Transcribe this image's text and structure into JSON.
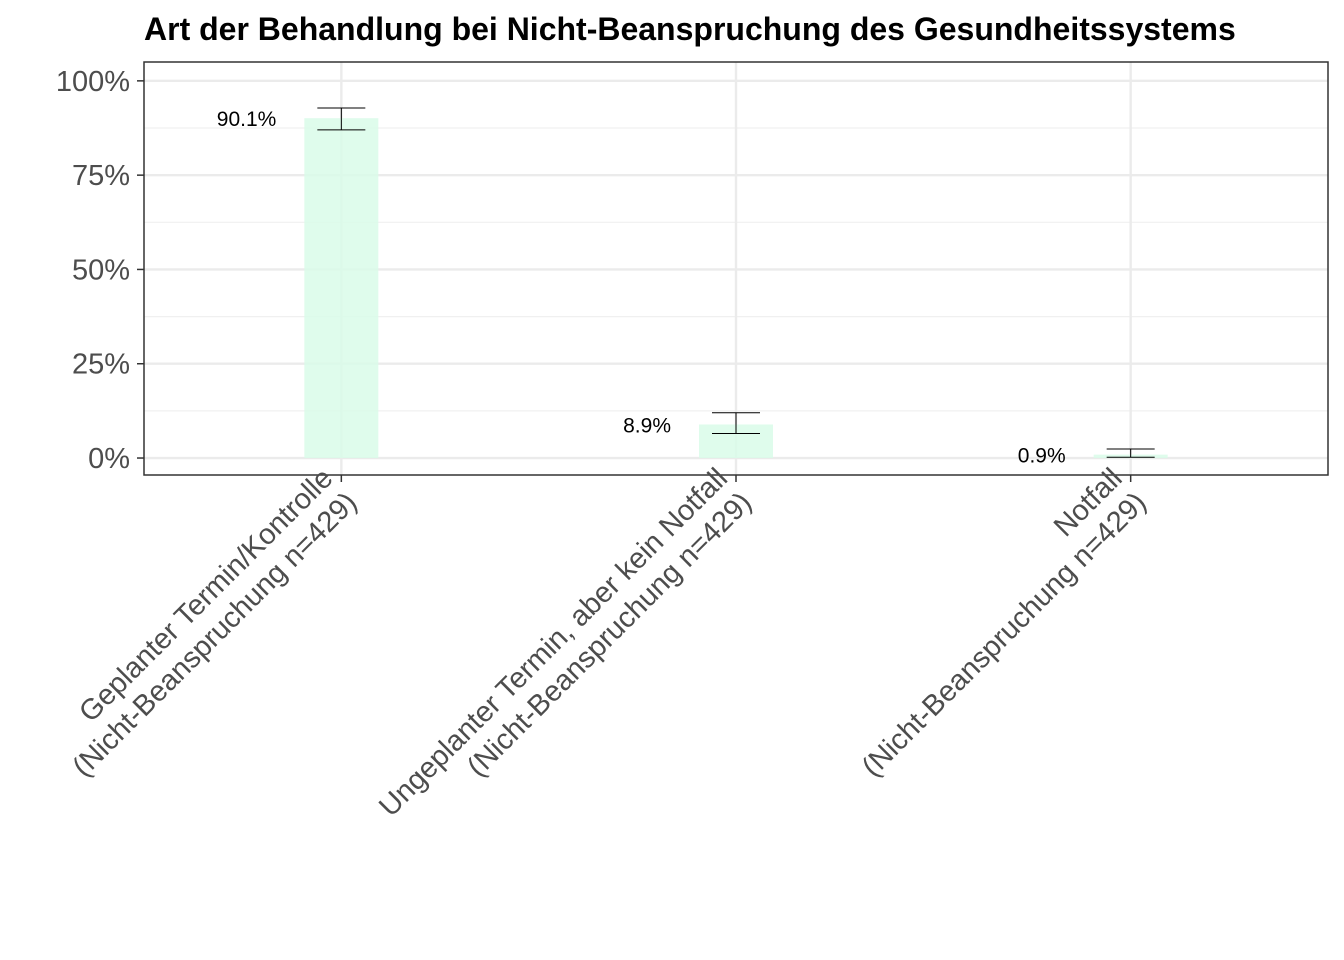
{
  "chart_data": {
    "type": "bar",
    "title": "Art der Behandlung bei Nicht-Beanspruchung des Gesundheitssystems",
    "xlabel": "",
    "ylabel": "",
    "categories": [
      [
        "Geplanter Termin/Kontrolle",
        "(Nicht-Beanspruchung n=429)"
      ],
      [
        "Ungeplanter Termin, aber kein Notfall",
        "(Nicht-Beanspruchung n=429)"
      ],
      [
        "Notfall",
        "(Nicht-Beanspruchung n=429)"
      ]
    ],
    "values": [
      90.1,
      8.9,
      0.9
    ],
    "error_low": [
      87.0,
      6.5,
      0.2
    ],
    "error_high": [
      92.8,
      12.0,
      2.4
    ],
    "data_labels": [
      "90.1%",
      "8.9%",
      "0.9%"
    ],
    "yticks": [
      0,
      25,
      50,
      75,
      100
    ],
    "ytick_labels": [
      "0%",
      "25%",
      "50%",
      "75%",
      "100%"
    ],
    "ylim": [
      -4.5,
      105
    ],
    "grid": true,
    "bar_color": "#d9fce9"
  }
}
